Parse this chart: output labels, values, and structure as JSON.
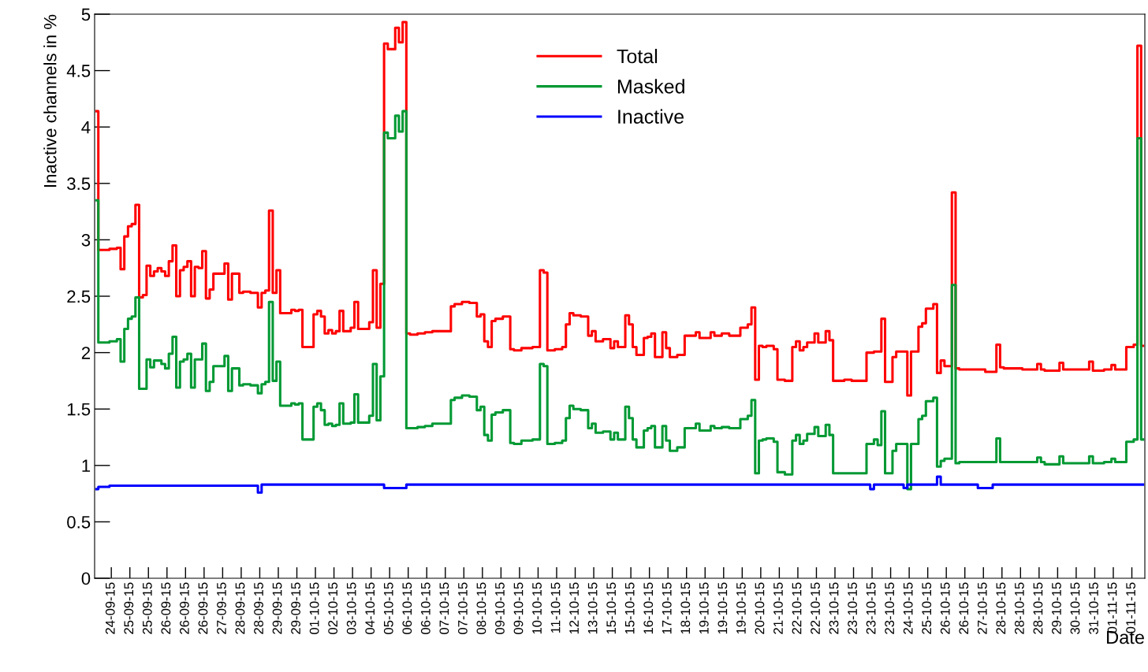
{
  "chart_data": {
    "type": "step",
    "xlabel": "Date",
    "ylabel": "Inactive channels in %",
    "ylim": [
      0,
      5
    ],
    "yticks": [
      0,
      0.5,
      1,
      1.5,
      2,
      2.5,
      3,
      3.5,
      4,
      4.5,
      5
    ],
    "categories": [
      null,
      null,
      null,
      null,
      "24-09-15",
      null,
      null,
      null,
      null,
      "25-09-15",
      null,
      null,
      null,
      null,
      "25-09-15",
      null,
      null,
      null,
      null,
      "26-09-15",
      null,
      null,
      null,
      null,
      "26-09-15",
      null,
      null,
      null,
      null,
      "26-09-15",
      null,
      null,
      null,
      null,
      "27-09-15",
      null,
      null,
      null,
      null,
      "28-09-15",
      null,
      null,
      null,
      null,
      "28-09-15",
      null,
      null,
      null,
      null,
      "29-09-15",
      null,
      null,
      null,
      null,
      "29-09-15",
      null,
      null,
      null,
      null,
      "01-10-15",
      null,
      null,
      null,
      null,
      "02-10-15",
      null,
      null,
      null,
      null,
      "03-10-15",
      null,
      null,
      null,
      null,
      "04-10-15",
      null,
      null,
      null,
      null,
      "05-10-15",
      null,
      null,
      null,
      null,
      "06-10-15",
      null,
      null,
      null,
      null,
      "06-10-15",
      null,
      null,
      null,
      null,
      "07-10-15",
      null,
      null,
      null,
      null,
      "07-10-15",
      null,
      null,
      null,
      null,
      "08-10-15",
      null,
      null,
      null,
      null,
      "09-10-15",
      null,
      null,
      null,
      null,
      "09-10-15",
      null,
      null,
      null,
      null,
      "10-10-15",
      null,
      null,
      null,
      null,
      "11-10-15",
      null,
      null,
      null,
      null,
      "12-10-15",
      null,
      null,
      null,
      null,
      "13-10-15",
      null,
      null,
      null,
      null,
      "15-10-15",
      null,
      null,
      null,
      null,
      "15-10-15",
      null,
      null,
      null,
      null,
      "16-10-15",
      null,
      null,
      null,
      null,
      "17-10-15",
      null,
      null,
      null,
      null,
      "18-10-15",
      null,
      null,
      null,
      null,
      "19-10-15",
      null,
      null,
      null,
      null,
      "19-10-15",
      null,
      null,
      null,
      null,
      "19-10-15",
      null,
      null,
      null,
      null,
      "20-10-15",
      null,
      null,
      null,
      null,
      "21-10-15",
      null,
      null,
      null,
      null,
      "22-10-15",
      null,
      null,
      null,
      null,
      "22-10-15",
      null,
      null,
      null,
      null,
      "23-10-15",
      null,
      null,
      null,
      null,
      "23-10-15",
      null,
      null,
      null,
      null,
      "23-10-15",
      null,
      null,
      null,
      null,
      "23-10-15",
      null,
      null,
      null,
      null,
      "24-10-15",
      null,
      null,
      null,
      null,
      "25-10-15",
      null,
      null,
      null,
      null,
      "26-10-15",
      null,
      null,
      null,
      null,
      "26-10-15",
      null,
      null,
      null,
      null,
      "27-10-15",
      null,
      null,
      null,
      null,
      "28-10-15",
      null,
      null,
      null,
      null,
      "28-10-15",
      null,
      null,
      null,
      null,
      "28-10-15",
      null,
      null,
      null,
      null,
      "29-10-15",
      null,
      null,
      null,
      null,
      "30-10-15",
      null,
      null,
      null,
      null,
      "31-10-15",
      null,
      null,
      null,
      null,
      "01-11-15",
      null,
      null,
      null,
      null,
      "01-11-15",
      null,
      null,
      null
    ],
    "grid": false,
    "legend": "top",
    "marker": "none",
    "line_style": "solid",
    "series": [
      {
        "name": "Total",
        "color": "#ff0000",
        "values": [
          4.14,
          2.91,
          2.91,
          2.91,
          2.92,
          2.92,
          2.93,
          2.74,
          3.03,
          3.12,
          3.14,
          3.31,
          2.49,
          2.51,
          2.77,
          2.68,
          2.72,
          2.75,
          2.72,
          2.68,
          2.81,
          2.95,
          2.5,
          2.73,
          2.76,
          2.81,
          2.5,
          2.76,
          2.75,
          2.9,
          2.48,
          2.56,
          2.7,
          2.7,
          2.7,
          2.79,
          2.47,
          2.7,
          2.7,
          2.53,
          2.54,
          2.54,
          2.53,
          2.53,
          2.4,
          2.53,
          2.55,
          3.26,
          2.53,
          2.73,
          2.35,
          2.35,
          2.35,
          2.38,
          2.37,
          2.38,
          2.05,
          2.05,
          2.05,
          2.34,
          2.37,
          2.32,
          2.17,
          2.2,
          2.17,
          2.19,
          2.37,
          2.19,
          2.19,
          2.22,
          2.45,
          2.21,
          2.21,
          2.21,
          2.27,
          2.73,
          2.22,
          2.61,
          4.74,
          4.69,
          4.69,
          4.88,
          4.75,
          4.93,
          2.17,
          2.16,
          2.16,
          2.17,
          2.17,
          2.18,
          2.18,
          2.19,
          2.19,
          2.19,
          2.19,
          2.19,
          2.41,
          2.43,
          2.43,
          2.45,
          2.45,
          2.44,
          2.44,
          2.32,
          2.34,
          2.1,
          2.05,
          2.28,
          2.3,
          2.3,
          2.32,
          2.32,
          2.03,
          2.02,
          2.02,
          2.04,
          2.04,
          2.04,
          2.05,
          2.05,
          2.73,
          2.71,
          2.02,
          2.02,
          2.03,
          2.03,
          2.05,
          2.25,
          2.35,
          2.33,
          2.33,
          2.32,
          2.32,
          2.15,
          2.19,
          2.1,
          2.1,
          2.12,
          2.12,
          2.04,
          2.1,
          2.05,
          2.05,
          2.33,
          2.25,
          2.05,
          1.98,
          1.98,
          2.13,
          2.14,
          2.17,
          1.96,
          1.96,
          2.18,
          2.04,
          1.96,
          1.96,
          1.98,
          1.98,
          2.15,
          2.15,
          2.15,
          2.18,
          2.13,
          2.13,
          2.13,
          2.18,
          2.15,
          2.15,
          2.17,
          2.17,
          2.15,
          2.15,
          2.15,
          2.22,
          2.22,
          2.25,
          2.4,
          1.76,
          2.06,
          2.05,
          2.06,
          2.06,
          2.03,
          1.76,
          1.76,
          1.75,
          1.75,
          2.05,
          2.1,
          2.02,
          2.05,
          2.09,
          2.09,
          2.17,
          2.09,
          2.09,
          2.19,
          2.11,
          1.75,
          1.75,
          1.75,
          1.76,
          1.76,
          1.75,
          1.75,
          1.75,
          1.75,
          2.0,
          2.0,
          2.01,
          2.01,
          2.3,
          1.74,
          1.74,
          1.96,
          2.01,
          2.01,
          2.01,
          1.62,
          2.01,
          2.01,
          2.23,
          2.26,
          2.39,
          2.39,
          2.43,
          1.82,
          1.93,
          1.88,
          1.88,
          3.42,
          1.86,
          1.85,
          1.85,
          1.85,
          1.85,
          1.85,
          1.85,
          1.85,
          1.83,
          1.83,
          1.83,
          2.07,
          1.87,
          1.86,
          1.86,
          1.86,
          1.86,
          1.86,
          1.85,
          1.85,
          1.85,
          1.85,
          1.9,
          1.85,
          1.84,
          1.84,
          1.84,
          1.84,
          1.91,
          1.85,
          1.85,
          1.85,
          1.85,
          1.85,
          1.85,
          1.85,
          1.92,
          1.84,
          1.84,
          1.84,
          1.85,
          1.85,
          1.89,
          1.85,
          1.85,
          1.85,
          2.05,
          2.05,
          2.07,
          4.72,
          2.06
        ]
      },
      {
        "name": "Masked",
        "color": "#009933",
        "values": [
          3.35,
          2.09,
          2.09,
          2.09,
          2.1,
          2.1,
          2.12,
          1.92,
          2.21,
          2.3,
          2.32,
          2.49,
          1.68,
          1.68,
          1.94,
          1.87,
          1.93,
          1.93,
          1.9,
          1.86,
          1.99,
          2.14,
          1.69,
          1.92,
          1.94,
          1.99,
          1.69,
          1.94,
          1.94,
          2.08,
          1.66,
          1.74,
          1.88,
          1.88,
          1.88,
          1.97,
          1.66,
          1.86,
          1.86,
          1.71,
          1.72,
          1.72,
          1.71,
          1.71,
          1.64,
          1.72,
          1.74,
          2.45,
          1.75,
          1.92,
          1.53,
          1.53,
          1.53,
          1.55,
          1.54,
          1.55,
          1.23,
          1.23,
          1.23,
          1.52,
          1.55,
          1.49,
          1.36,
          1.37,
          1.35,
          1.36,
          1.55,
          1.37,
          1.37,
          1.38,
          1.63,
          1.38,
          1.38,
          1.38,
          1.44,
          1.9,
          1.4,
          1.79,
          3.95,
          3.9,
          3.9,
          4.1,
          3.96,
          4.14,
          1.33,
          1.33,
          1.33,
          1.34,
          1.34,
          1.35,
          1.35,
          1.37,
          1.37,
          1.37,
          1.37,
          1.37,
          1.58,
          1.6,
          1.6,
          1.62,
          1.62,
          1.61,
          1.61,
          1.49,
          1.52,
          1.27,
          1.22,
          1.45,
          1.47,
          1.47,
          1.49,
          1.49,
          1.2,
          1.19,
          1.19,
          1.22,
          1.22,
          1.22,
          1.23,
          1.23,
          1.9,
          1.88,
          1.19,
          1.19,
          1.2,
          1.2,
          1.22,
          1.42,
          1.53,
          1.5,
          1.5,
          1.49,
          1.49,
          1.33,
          1.37,
          1.29,
          1.29,
          1.3,
          1.3,
          1.23,
          1.29,
          1.23,
          1.23,
          1.52,
          1.42,
          1.23,
          1.16,
          1.16,
          1.31,
          1.33,
          1.35,
          1.16,
          1.16,
          1.35,
          1.22,
          1.13,
          1.13,
          1.16,
          1.16,
          1.33,
          1.33,
          1.33,
          1.37,
          1.31,
          1.31,
          1.31,
          1.35,
          1.33,
          1.33,
          1.34,
          1.34,
          1.33,
          1.33,
          1.33,
          1.41,
          1.41,
          1.44,
          1.58,
          0.93,
          1.22,
          1.23,
          1.24,
          1.24,
          1.21,
          0.94,
          0.94,
          0.92,
          0.92,
          1.22,
          1.27,
          1.19,
          1.22,
          1.28,
          1.28,
          1.34,
          1.26,
          1.26,
          1.36,
          1.27,
          0.93,
          0.93,
          0.93,
          0.93,
          0.93,
          0.93,
          0.93,
          0.93,
          0.93,
          1.19,
          1.19,
          1.23,
          1.18,
          1.48,
          0.93,
          0.93,
          1.13,
          1.19,
          1.19,
          1.19,
          0.79,
          1.19,
          1.19,
          1.41,
          1.44,
          1.57,
          1.57,
          1.6,
          0.99,
          1.04,
          1.06,
          1.06,
          2.6,
          1.02,
          1.03,
          1.03,
          1.03,
          1.03,
          1.03,
          1.03,
          1.03,
          1.03,
          1.03,
          1.03,
          1.24,
          1.03,
          1.03,
          1.03,
          1.03,
          1.03,
          1.03,
          1.03,
          1.03,
          1.03,
          1.03,
          1.07,
          1.03,
          1.01,
          1.01,
          1.01,
          1.01,
          1.08,
          1.02,
          1.02,
          1.02,
          1.02,
          1.02,
          1.02,
          1.02,
          1.08,
          1.02,
          1.02,
          1.02,
          1.03,
          1.03,
          1.06,
          1.03,
          1.03,
          1.03,
          1.21,
          1.21,
          1.23,
          3.9,
          1.23
        ]
      },
      {
        "name": "Inactive",
        "color": "#0000ff",
        "values": [
          0.79,
          0.81,
          0.81,
          0.81,
          0.82,
          0.82,
          0.82,
          0.82,
          0.82,
          0.82,
          0.82,
          0.82,
          0.82,
          0.82,
          0.82,
          0.82,
          0.82,
          0.82,
          0.82,
          0.82,
          0.82,
          0.82,
          0.82,
          0.82,
          0.82,
          0.82,
          0.82,
          0.82,
          0.82,
          0.82,
          0.82,
          0.82,
          0.82,
          0.82,
          0.82,
          0.82,
          0.82,
          0.82,
          0.82,
          0.82,
          0.82,
          0.82,
          0.82,
          0.82,
          0.76,
          0.83,
          0.83,
          0.83,
          0.83,
          0.83,
          0.83,
          0.83,
          0.83,
          0.83,
          0.83,
          0.83,
          0.83,
          0.83,
          0.83,
          0.83,
          0.83,
          0.83,
          0.83,
          0.83,
          0.83,
          0.83,
          0.83,
          0.83,
          0.83,
          0.83,
          0.83,
          0.83,
          0.83,
          0.83,
          0.83,
          0.83,
          0.83,
          0.83,
          0.8,
          0.8,
          0.8,
          0.8,
          0.8,
          0.8,
          0.83,
          0.83,
          0.83,
          0.83,
          0.83,
          0.83,
          0.83,
          0.83,
          0.83,
          0.83,
          0.83,
          0.83,
          0.83,
          0.83,
          0.83,
          0.83,
          0.83,
          0.83,
          0.83,
          0.83,
          0.83,
          0.83,
          0.83,
          0.83,
          0.83,
          0.83,
          0.83,
          0.83,
          0.83,
          0.83,
          0.83,
          0.83,
          0.83,
          0.83,
          0.83,
          0.83,
          0.83,
          0.83,
          0.83,
          0.83,
          0.83,
          0.83,
          0.83,
          0.83,
          0.83,
          0.83,
          0.83,
          0.83,
          0.83,
          0.83,
          0.83,
          0.83,
          0.83,
          0.83,
          0.83,
          0.83,
          0.83,
          0.83,
          0.83,
          0.83,
          0.83,
          0.83,
          0.83,
          0.83,
          0.83,
          0.83,
          0.83,
          0.83,
          0.83,
          0.83,
          0.83,
          0.83,
          0.83,
          0.83,
          0.83,
          0.83,
          0.83,
          0.83,
          0.83,
          0.83,
          0.83,
          0.83,
          0.83,
          0.83,
          0.83,
          0.83,
          0.83,
          0.83,
          0.83,
          0.83,
          0.83,
          0.83,
          0.83,
          0.83,
          0.83,
          0.83,
          0.83,
          0.83,
          0.83,
          0.83,
          0.83,
          0.83,
          0.83,
          0.83,
          0.83,
          0.83,
          0.83,
          0.83,
          0.83,
          0.83,
          0.83,
          0.83,
          0.83,
          0.83,
          0.83,
          0.83,
          0.83,
          0.83,
          0.83,
          0.83,
          0.83,
          0.83,
          0.83,
          0.83,
          0.83,
          0.79,
          0.83,
          0.83,
          0.83,
          0.83,
          0.83,
          0.83,
          0.83,
          0.83,
          0.8,
          0.83,
          0.83,
          0.83,
          0.83,
          0.83,
          0.83,
          0.83,
          0.83,
          0.9,
          0.83,
          0.83,
          0.83,
          0.83,
          0.83,
          0.83,
          0.83,
          0.83,
          0.83,
          0.83,
          0.8,
          0.8,
          0.8,
          0.8,
          0.83,
          0.83,
          0.83,
          0.83,
          0.83,
          0.83,
          0.83,
          0.83,
          0.83,
          0.83,
          0.83,
          0.83,
          0.83,
          0.83,
          0.83,
          0.83,
          0.83,
          0.83,
          0.83,
          0.83,
          0.83,
          0.83,
          0.83,
          0.83,
          0.83,
          0.83,
          0.83,
          0.83,
          0.83,
          0.83,
          0.83,
          0.83,
          0.83,
          0.83,
          0.83,
          0.83,
          0.83,
          0.83,
          0.83,
          0.83,
          0.83
        ]
      }
    ]
  }
}
